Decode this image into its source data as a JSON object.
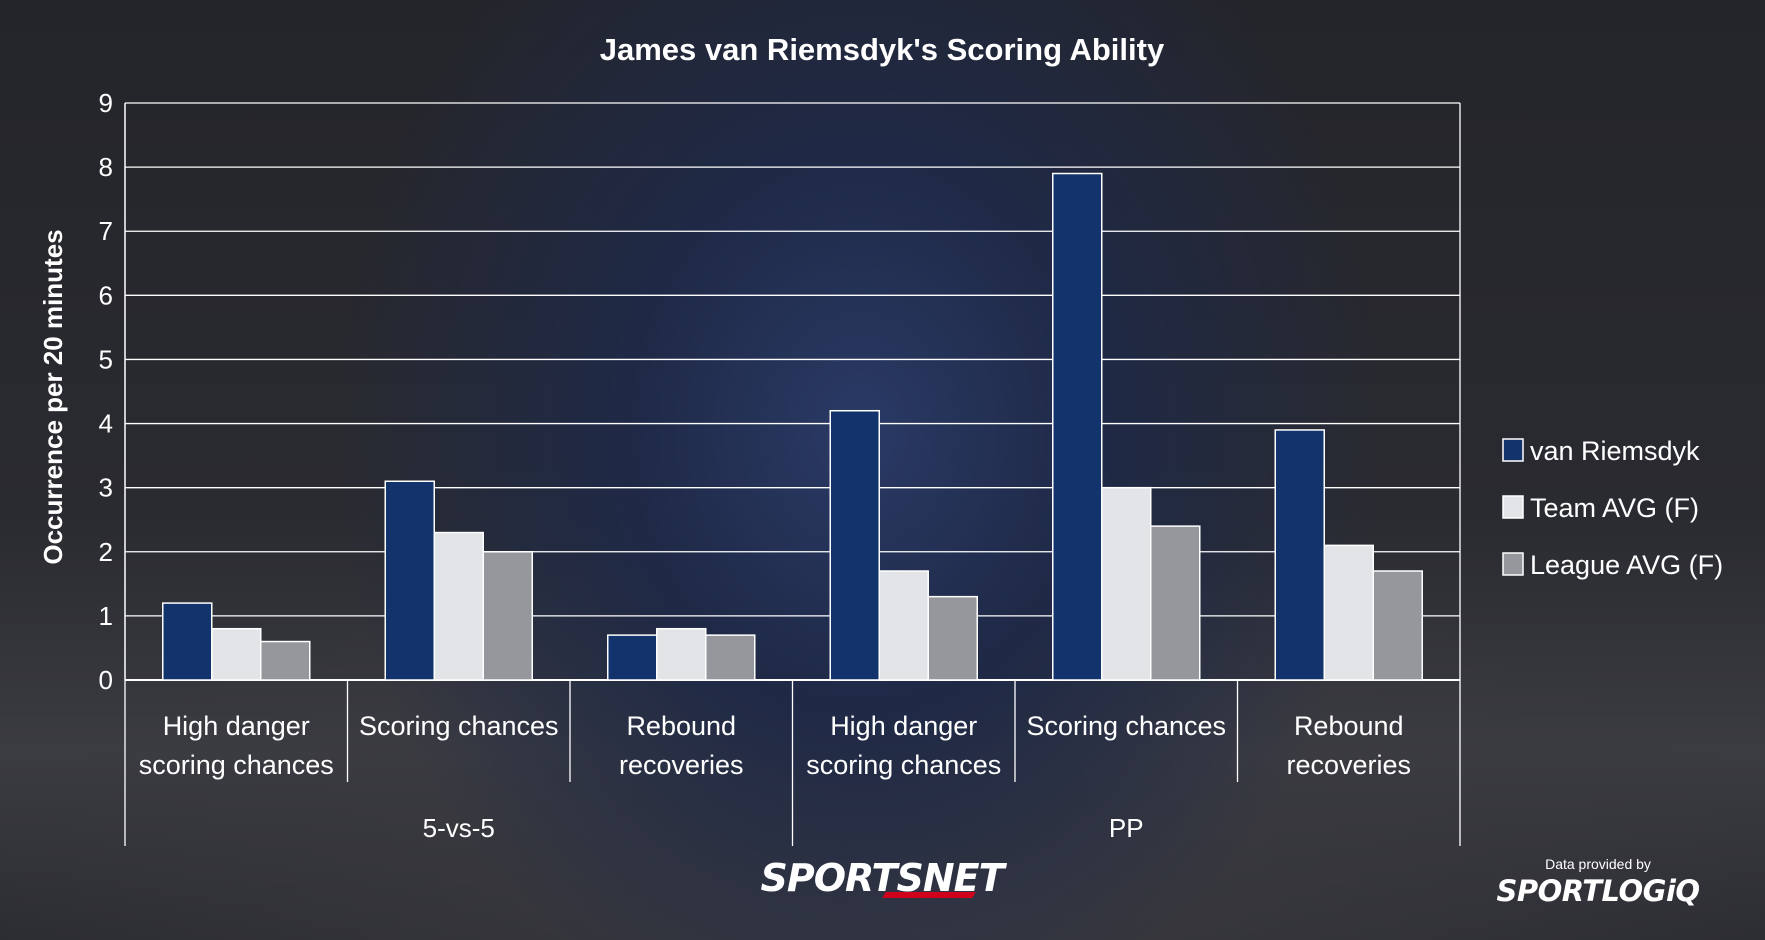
{
  "chart_data": {
    "type": "bar",
    "title": "James van Riemsdyk's Scoring Ability",
    "ylabel": "Occurrence per 20 minutes",
    "ylim": [
      0,
      9
    ],
    "yticks": [
      "0",
      "1",
      "2",
      "3",
      "4",
      "5",
      "6",
      "7",
      "8",
      "9"
    ],
    "grid": true,
    "legend_position": "right",
    "categories": [
      [
        "High danger",
        "scoring chances"
      ],
      [
        "Scoring chances"
      ],
      [
        "Rebound",
        "recoveries"
      ],
      [
        "High danger",
        "scoring chances"
      ],
      [
        "Scoring chances"
      ],
      [
        "Rebound",
        "recoveries"
      ]
    ],
    "groups": [
      {
        "label": "5-vs-5",
        "span": 3
      },
      {
        "label": "PP",
        "span": 3
      }
    ],
    "series": [
      {
        "name": "van Riemsdyk",
        "color": "#12336b",
        "values": [
          1.2,
          3.1,
          0.7,
          4.2,
          7.9,
          3.9
        ]
      },
      {
        "name": "Team AVG (F)",
        "color": "#e3e4e8",
        "values": [
          0.8,
          2.3,
          0.8,
          1.7,
          3.0,
          2.1
        ]
      },
      {
        "name": "League AVG (F)",
        "color": "#95979d",
        "values": [
          0.6,
          2.0,
          0.7,
          1.3,
          2.4,
          1.7
        ]
      }
    ]
  },
  "branding": {
    "logo": "SPORTSNET",
    "credit_line": "Data provided by",
    "credit_logo": "SPORTLOGiQ"
  }
}
